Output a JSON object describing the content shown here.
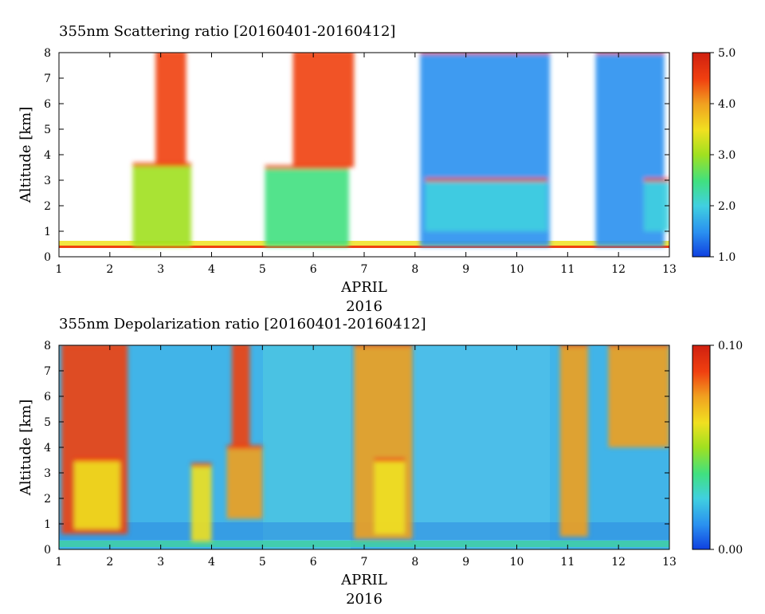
{
  "chart_data": [
    {
      "type": "heatmap",
      "title": "355nm Scattering ratio [20160401-20160412]",
      "xlabel": "APRIL",
      "xlabel2": "2016",
      "ylabel": "Altitude [km]",
      "xlim": [
        1,
        13
      ],
      "ylim": [
        0,
        8
      ],
      "x_ticks": [
        "1",
        "2",
        "3",
        "4",
        "5",
        "6",
        "7",
        "8",
        "9",
        "10",
        "11",
        "12",
        "13"
      ],
      "y_ticks": [
        "0",
        "1",
        "2",
        "3",
        "4",
        "5",
        "6",
        "7",
        "8"
      ],
      "colorbar": {
        "min": 1.0,
        "max": 5.0,
        "ticks": [
          "1.0",
          "2.0",
          "3.0",
          "4.0",
          "5.0"
        ]
      },
      "colormap": [
        "#1040e0",
        "#2a90f0",
        "#40d0e0",
        "#40e080",
        "#a0e020",
        "#f0e020",
        "#f0a020",
        "#f04010",
        "#d02010"
      ],
      "clouds": [
        {
          "x0": 2.45,
          "x1": 3.6,
          "y0": 0.4,
          "y1": 3.6,
          "value": 3.2
        },
        {
          "x0": 2.9,
          "x1": 3.5,
          "y0": 3.6,
          "y1": 8.0,
          "value": 4.6
        },
        {
          "x0": 5.05,
          "x1": 6.7,
          "y0": 0.4,
          "y1": 3.5,
          "value": 2.6
        },
        {
          "x0": 5.6,
          "x1": 6.8,
          "y0": 3.5,
          "y1": 8.0,
          "value": 4.5
        },
        {
          "x0": 8.1,
          "x1": 10.65,
          "y0": 0.4,
          "y1": 8.0,
          "value": 1.5
        },
        {
          "x0": 8.2,
          "x1": 10.6,
          "y0": 1.0,
          "y1": 3.0,
          "value": 2.1
        },
        {
          "x0": 11.55,
          "x1": 12.9,
          "y0": 0.4,
          "y1": 8.0,
          "value": 1.5
        },
        {
          "x0": 12.5,
          "x1": 13.0,
          "y0": 1.0,
          "y1": 3.0,
          "value": 2.0
        }
      ]
    },
    {
      "type": "heatmap",
      "title": "355nm Depolarization ratio [20160401-20160412]",
      "xlabel": "APRIL",
      "xlabel2": "2016",
      "ylabel": "Altitude [km]",
      "xlim": [
        1,
        13
      ],
      "ylim": [
        0,
        8
      ],
      "x_ticks": [
        "1",
        "2",
        "3",
        "4",
        "5",
        "6",
        "7",
        "8",
        "9",
        "10",
        "11",
        "12",
        "13"
      ],
      "y_ticks": [
        "0",
        "1",
        "2",
        "3",
        "4",
        "5",
        "6",
        "7",
        "8"
      ],
      "colorbar": {
        "min": 0.0,
        "max": 0.1,
        "ticks": [
          "0.00",
          "0.10"
        ]
      },
      "colormap": [
        "#1040e0",
        "#2a90f0",
        "#40d0e0",
        "#40e080",
        "#a0e020",
        "#f0e020",
        "#f0a020",
        "#f04010",
        "#d02010"
      ],
      "clouds": [
        {
          "x0": 1.05,
          "x1": 2.35,
          "y0": 0.6,
          "y1": 8.0,
          "value": 0.085
        },
        {
          "x0": 1.3,
          "x1": 2.2,
          "y0": 0.8,
          "y1": 3.5,
          "value": 0.06
        },
        {
          "x0": 3.6,
          "x1": 4.0,
          "y0": 0.3,
          "y1": 3.3,
          "value": 0.065
        },
        {
          "x0": 4.3,
          "x1": 5.0,
          "y0": 1.2,
          "y1": 4.0,
          "value": 0.07
        },
        {
          "x0": 4.4,
          "x1": 4.75,
          "y0": 4.0,
          "y1": 8.0,
          "value": 0.085
        },
        {
          "x0": 6.8,
          "x1": 7.95,
          "y0": 0.4,
          "y1": 8.0,
          "value": 0.08
        },
        {
          "x0": 7.2,
          "x1": 7.8,
          "y0": 0.6,
          "y1": 3.5,
          "value": 0.06
        },
        {
          "x0": 10.85,
          "x1": 11.4,
          "y0": 0.5,
          "y1": 8.0,
          "value": 0.07
        },
        {
          "x0": 11.8,
          "x1": 13.0,
          "y0": 4.0,
          "y1": 8.0,
          "value": 0.075
        }
      ]
    }
  ]
}
